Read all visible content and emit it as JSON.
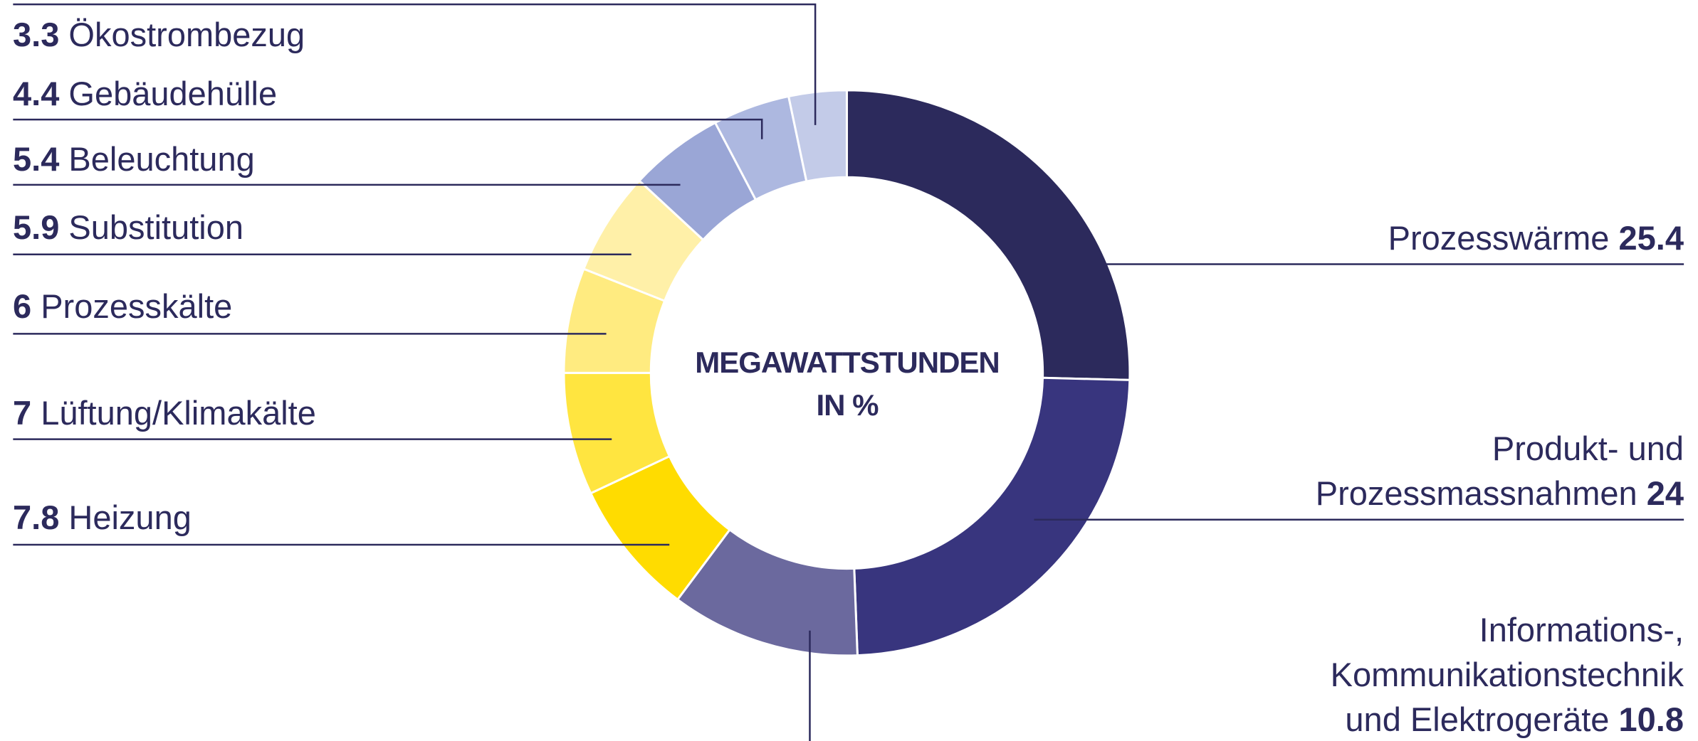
{
  "chart_data": {
    "type": "donut",
    "title": "MEGAWATTSTUNDEN IN %",
    "categories": [
      "Prozesswärme",
      "Produkt- und Prozessmassnahmen",
      "Informations-, Kommunikationstechnik und Elektrogeräte",
      "Heizung",
      "Lüftung/Klimakälte",
      "Prozesskälte",
      "Substitution",
      "Beleuchtung",
      "Gebäudehülle",
      "Ökostrombezug"
    ],
    "values": [
      25.4,
      24,
      10.8,
      7.8,
      7,
      6,
      5.9,
      5.4,
      4.4,
      3.3
    ],
    "colors": [
      "#2c2a5c",
      "#38357e",
      "#6b699e",
      "#ffdc00",
      "#ffe540",
      "#ffeb80",
      "#fff0a8",
      "#9aa6d6",
      "#adb8e0",
      "#c3cbe8"
    ]
  }
}
